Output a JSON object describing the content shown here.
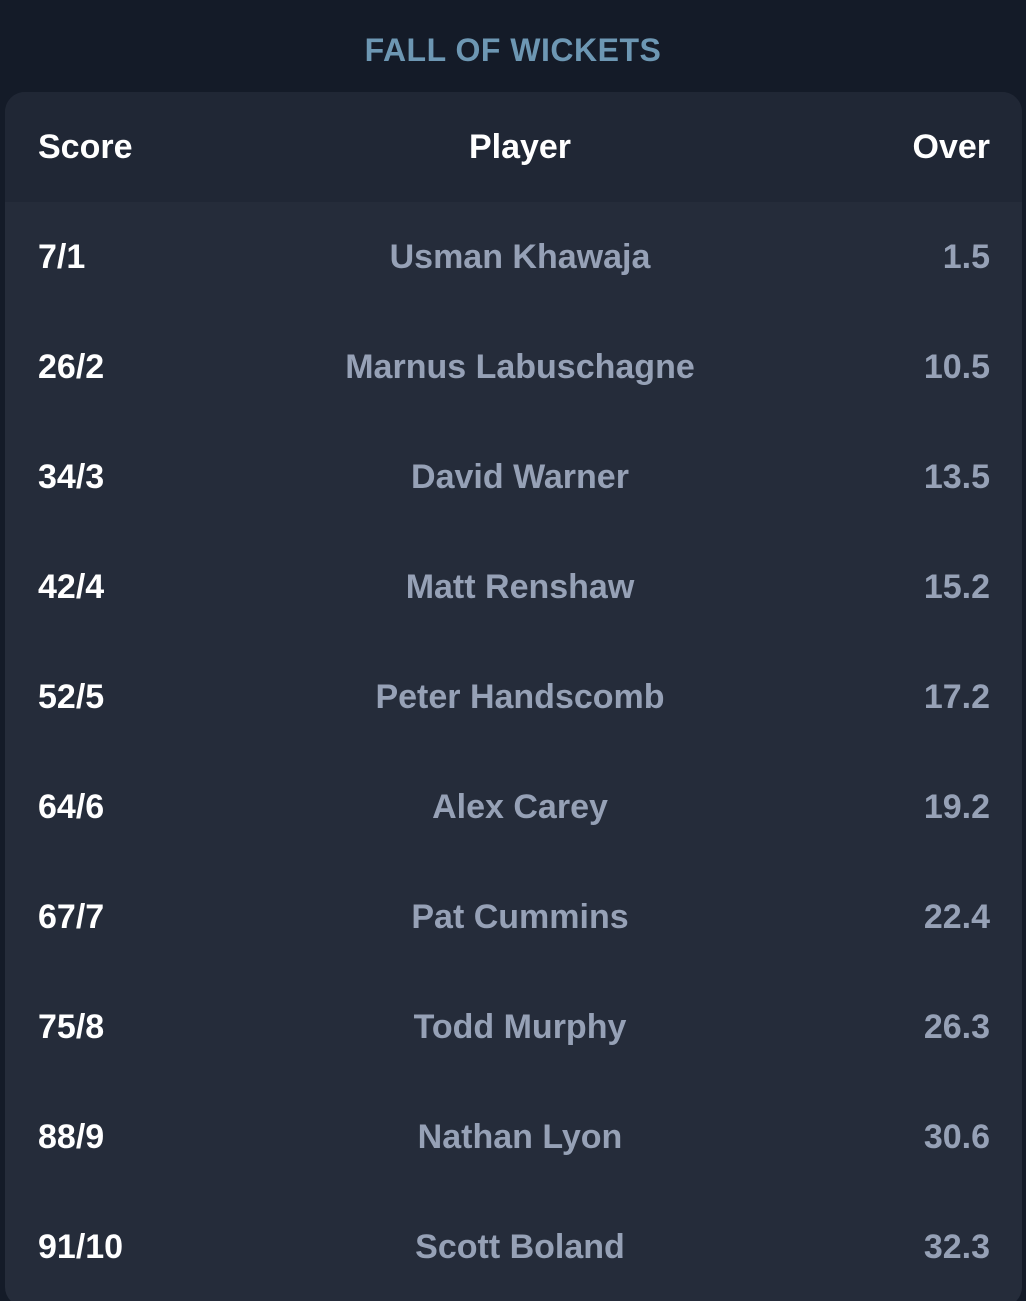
{
  "title": "FALL OF WICKETS",
  "table": {
    "columns": [
      "Score",
      "Player",
      "Over"
    ],
    "rows": [
      {
        "score": "7/1",
        "player": "Usman Khawaja",
        "over": "1.5"
      },
      {
        "score": "26/2",
        "player": "Marnus Labuschagne",
        "over": "10.5"
      },
      {
        "score": "34/3",
        "player": "David Warner",
        "over": "13.5"
      },
      {
        "score": "42/4",
        "player": "Matt Renshaw",
        "over": "15.2"
      },
      {
        "score": "52/5",
        "player": "Peter Handscomb",
        "over": "17.2"
      },
      {
        "score": "64/6",
        "player": "Alex Carey",
        "over": "19.2"
      },
      {
        "score": "67/7",
        "player": "Pat Cummins",
        "over": "22.4"
      },
      {
        "score": "75/8",
        "player": "Todd Murphy",
        "over": "26.3"
      },
      {
        "score": "88/9",
        "player": "Nathan Lyon",
        "over": "30.6"
      },
      {
        "score": "91/10",
        "player": "Scott Boland",
        "over": "32.3"
      }
    ]
  }
}
